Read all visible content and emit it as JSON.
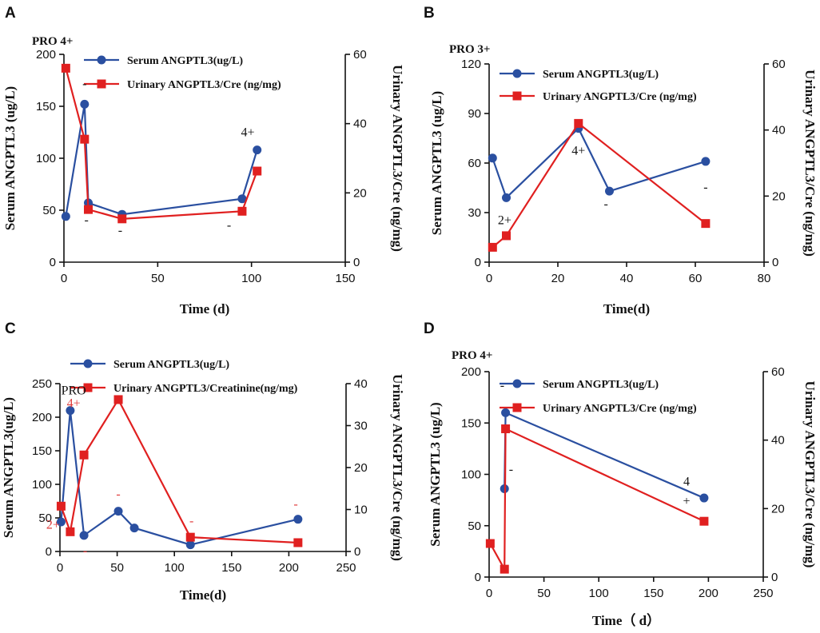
{
  "colors": {
    "serum": "#2a4fa0",
    "urinary": "#e02020",
    "axis": "#111111",
    "note_red": "#e03a3a"
  },
  "chart_data": [
    {
      "panel": "A",
      "type": "line",
      "title": "PRO 4+",
      "xlabel": "Time (d)",
      "ylabel_left": "Serum ANGPTL3 (ug/L)",
      "ylabel_right": "Urinary ANGPTL3/Cre (ng/mg)",
      "xlim": [
        0,
        150
      ],
      "xticks": [
        0,
        50,
        100,
        150
      ],
      "ylim_left": [
        0,
        200
      ],
      "yticks_left": [
        0,
        50,
        100,
        150,
        200
      ],
      "ylim_right": [
        0,
        60
      ],
      "yticks_right": [
        0,
        20,
        40,
        60
      ],
      "series": [
        {
          "name": "Serum ANGPTL3(ug/L)",
          "axis": "left",
          "marker": "circle",
          "x": [
            1,
            11,
            13,
            31,
            95,
            103
          ],
          "y": [
            44,
            152,
            57,
            46,
            61,
            108
          ]
        },
        {
          "name": "Urinary ANGPTL3/Cre (ng/mg)",
          "axis": "right",
          "marker": "square",
          "x": [
            1,
            11,
            13,
            31,
            95,
            103
          ],
          "y": [
            56,
            35.5,
            15.2,
            12.5,
            14.7,
            26.3
          ]
        }
      ],
      "annotations": [
        {
          "text": "-",
          "x": 11,
          "y": 168,
          "color": "dark"
        },
        {
          "text": "-",
          "x": 12,
          "y": 37,
          "color": "dark"
        },
        {
          "text": "-",
          "x": 30,
          "y": 27,
          "color": "dark"
        },
        {
          "text": "-",
          "x": 88,
          "y": 32,
          "color": "dark"
        },
        {
          "text": "4+",
          "x": 98,
          "y": 121,
          "color": "dark"
        }
      ]
    },
    {
      "panel": "B",
      "type": "line",
      "title": "PRO 3+",
      "xlabel": "Time(d)",
      "ylabel_left": "Serum ANGPTL3 (ug/L)",
      "ylabel_right": "Urinary ANGPTL3/Cre (ng/mg)",
      "xlim": [
        0,
        80
      ],
      "xticks": [
        0,
        20,
        40,
        60,
        80
      ],
      "ylim_left": [
        0,
        120
      ],
      "yticks_left": [
        0,
        30,
        60,
        90,
        120
      ],
      "ylim_right": [
        0,
        60
      ],
      "yticks_right": [
        0,
        20,
        40,
        60
      ],
      "series": [
        {
          "name": "Serum ANGPTL3(ug/L)",
          "axis": "left",
          "marker": "circle",
          "x": [
            1,
            5,
            26,
            35,
            63
          ],
          "y": [
            63,
            39,
            81,
            43,
            61
          ]
        },
        {
          "name": "Urinary ANGPTL3/Cre (ng/mg)",
          "axis": "right",
          "marker": "square",
          "x": [
            1,
            5,
            26,
            63
          ],
          "y": [
            4.5,
            8,
            42,
            11.7
          ]
        }
      ],
      "annotations": [
        {
          "text": "2+",
          "x": 4.5,
          "y": 23,
          "color": "dark"
        },
        {
          "text": "4+",
          "x": 26,
          "y": 65,
          "color": "dark"
        },
        {
          "text": "-",
          "x": 34,
          "y": 33,
          "color": "dark"
        },
        {
          "text": "-",
          "x": 63,
          "y": 43,
          "color": "dark"
        }
      ]
    },
    {
      "panel": "C",
      "type": "line",
      "title": "",
      "xlabel": "Time(d)",
      "ylabel_left": "Serum ANGPTL3(ug/L)",
      "ylabel_right": "Urinary ANGPTL3/Cre (ng/mg)",
      "xlim": [
        0,
        250
      ],
      "xticks": [
        0,
        50,
        100,
        150,
        200,
        250
      ],
      "ylim_left": [
        0,
        250
      ],
      "yticks_left": [
        0,
        50,
        100,
        150,
        200,
        250
      ],
      "ylim_right": [
        0,
        40
      ],
      "yticks_right": [
        0,
        10,
        20,
        30,
        40
      ],
      "series": [
        {
          "name": "Serum ANGPTL3(ug/L)",
          "axis": "left",
          "marker": "circle",
          "x": [
            1,
            9,
            21,
            51,
            65,
            114,
            208
          ],
          "y": [
            44,
            210,
            24,
            60,
            35,
            10,
            48
          ]
        },
        {
          "name": "Urinary ANGPTL3/Creatinine(ng/mg)",
          "axis": "right",
          "marker": "square",
          "x": [
            1,
            9,
            21,
            51,
            114,
            208
          ],
          "y": [
            10.8,
            4.7,
            23,
            36.2,
            3.4,
            2.1
          ]
        }
      ],
      "annotations": [
        {
          "text": "PRO",
          "x": 12,
          "y": 234,
          "color": "dark"
        },
        {
          "text": "4+",
          "x": 12,
          "y": 215,
          "color": "red"
        },
        {
          "text": "2+",
          "x": -6,
          "y": 34,
          "color": "red"
        },
        {
          "text": "-",
          "x": 22,
          "y": -5,
          "color": "red"
        },
        {
          "text": "-",
          "x": 51,
          "y": 80,
          "color": "red"
        },
        {
          "text": "-",
          "x": 115,
          "y": 40,
          "color": "red"
        },
        {
          "text": "-",
          "x": 206,
          "y": 65,
          "color": "red"
        }
      ]
    },
    {
      "panel": "D",
      "type": "line",
      "title": "PRO 4+",
      "xlabel": "Time（ d）",
      "ylabel_left": "Serum ANGPTL3 (ug/L)",
      "ylabel_right": "Urinary ANGPTL3/Cre (ng/mg)",
      "xlim": [
        0,
        250
      ],
      "xticks": [
        0,
        50,
        100,
        150,
        200,
        250
      ],
      "ylim_left": [
        0,
        200
      ],
      "yticks_left": [
        0,
        50,
        100,
        150,
        200
      ],
      "ylim_right": [
        0,
        60
      ],
      "yticks_right": [
        0,
        20,
        40,
        60
      ],
      "series": [
        {
          "name": "Serum ANGPTL3(ug/L)",
          "axis": "left",
          "marker": "circle",
          "x": [
            14,
            15,
            196
          ],
          "y": [
            86,
            160,
            77
          ]
        },
        {
          "name": "Urinary ANGPTL3/Cre (ng/mg)",
          "axis": "right",
          "marker": "square",
          "x": [
            1,
            14,
            15,
            196
          ],
          "y": [
            9.8,
            2.3,
            43.3,
            16.3
          ]
        }
      ],
      "annotations": [
        {
          "text": "-",
          "x": 12,
          "y": 183,
          "color": "dark"
        },
        {
          "text": "-",
          "x": 20,
          "y": 101,
          "color": "dark"
        },
        {
          "text": "4",
          "x": 180,
          "y": 89,
          "color": "dark"
        },
        {
          "text": "+",
          "x": 180,
          "y": 70,
          "color": "dark"
        }
      ]
    }
  ]
}
